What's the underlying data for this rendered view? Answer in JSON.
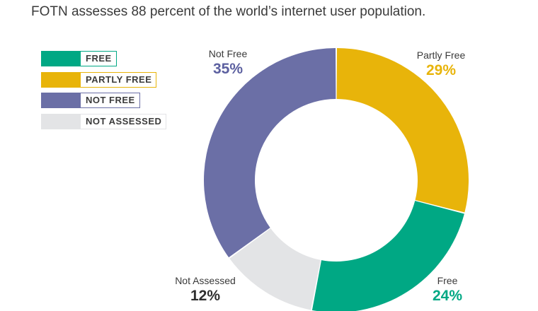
{
  "title": "FOTN assesses 88 percent of the world’s internet user population.",
  "chart_data": {
    "type": "pie",
    "donut": true,
    "legend_position": "top-left",
    "legend": [
      {
        "label": "FREE",
        "color": "#00a884"
      },
      {
        "label": "PARTLY FREE",
        "color": "#e8b40a"
      },
      {
        "label": "NOT FREE",
        "color": "#6b6fa6"
      },
      {
        "label": "NOT ASSESSED",
        "color": "#e3e4e6"
      }
    ],
    "slices": [
      {
        "name": "Partly Free",
        "value": 29,
        "pct_label": "29%",
        "color": "#e8b40a",
        "label_color": "#e8b40a"
      },
      {
        "name": "Free",
        "value": 24,
        "pct_label": "24%",
        "color": "#00a884",
        "label_color": "#00a884"
      },
      {
        "name": "Not Assessed",
        "value": 12,
        "pct_label": "12%",
        "color": "#e3e4e6",
        "label_color": "#2e2e2e"
      },
      {
        "name": "Not Free",
        "value": 35,
        "pct_label": "35%",
        "color": "#6b6fa6",
        "label_color": "#5c60a0"
      }
    ]
  }
}
